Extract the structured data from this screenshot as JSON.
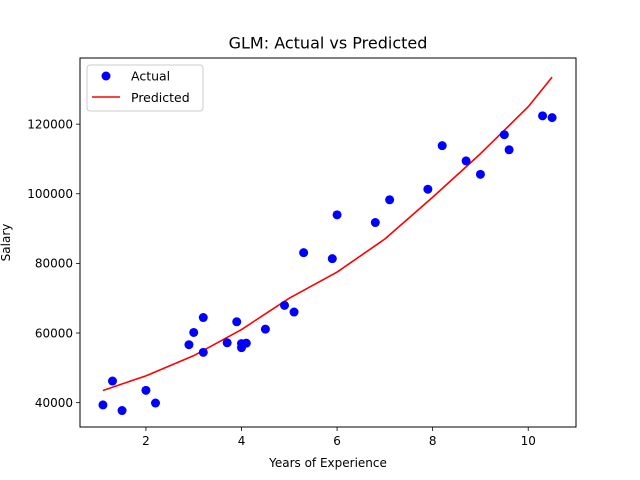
{
  "chart_data": {
    "type": "scatter",
    "title": "GLM: Actual vs Predicted",
    "xlabel": "Years of Experience",
    "ylabel": "Salary",
    "xlim": [
      0.62,
      11.0
    ],
    "ylim": [
      33000,
      139000
    ],
    "xticks": [
      2,
      4,
      6,
      8,
      10
    ],
    "yticks": [
      40000,
      60000,
      80000,
      100000,
      120000
    ],
    "grid": false,
    "legend_position": "top-left",
    "series": [
      {
        "name": "Actual",
        "kind": "scatter",
        "color": "#0000ff",
        "points": [
          {
            "x": 1.1,
            "y": 39343
          },
          {
            "x": 1.3,
            "y": 46205
          },
          {
            "x": 1.5,
            "y": 37731
          },
          {
            "x": 2.0,
            "y": 43525
          },
          {
            "x": 2.2,
            "y": 39891
          },
          {
            "x": 2.9,
            "y": 56642
          },
          {
            "x": 3.0,
            "y": 60150
          },
          {
            "x": 3.2,
            "y": 54445
          },
          {
            "x": 3.2,
            "y": 64445
          },
          {
            "x": 3.7,
            "y": 57189
          },
          {
            "x": 3.9,
            "y": 63218
          },
          {
            "x": 4.0,
            "y": 55794
          },
          {
            "x": 4.0,
            "y": 56957
          },
          {
            "x": 4.1,
            "y": 57081
          },
          {
            "x": 4.5,
            "y": 61111
          },
          {
            "x": 4.9,
            "y": 67938
          },
          {
            "x": 5.1,
            "y": 66029
          },
          {
            "x": 5.3,
            "y": 83088
          },
          {
            "x": 5.9,
            "y": 81363
          },
          {
            "x": 6.0,
            "y": 93940
          },
          {
            "x": 6.8,
            "y": 91738
          },
          {
            "x": 7.1,
            "y": 98273
          },
          {
            "x": 7.9,
            "y": 101302
          },
          {
            "x": 8.2,
            "y": 113812
          },
          {
            "x": 8.7,
            "y": 109431
          },
          {
            "x": 9.0,
            "y": 105582
          },
          {
            "x": 9.5,
            "y": 116969
          },
          {
            "x": 9.6,
            "y": 112635
          },
          {
            "x": 10.3,
            "y": 122391
          },
          {
            "x": 10.5,
            "y": 121872
          }
        ]
      },
      {
        "name": "Predicted",
        "kind": "line",
        "color": "#ff0000",
        "points": [
          {
            "x": 1.1,
            "y": 43500
          },
          {
            "x": 2.0,
            "y": 47700
          },
          {
            "x": 3.0,
            "y": 53500
          },
          {
            "x": 4.0,
            "y": 61000
          },
          {
            "x": 5.0,
            "y": 70000
          },
          {
            "x": 6.0,
            "y": 77500
          },
          {
            "x": 7.0,
            "y": 87000
          },
          {
            "x": 8.0,
            "y": 99000
          },
          {
            "x": 9.0,
            "y": 111500
          },
          {
            "x": 10.0,
            "y": 125000
          },
          {
            "x": 10.5,
            "y": 133500
          }
        ]
      }
    ]
  }
}
